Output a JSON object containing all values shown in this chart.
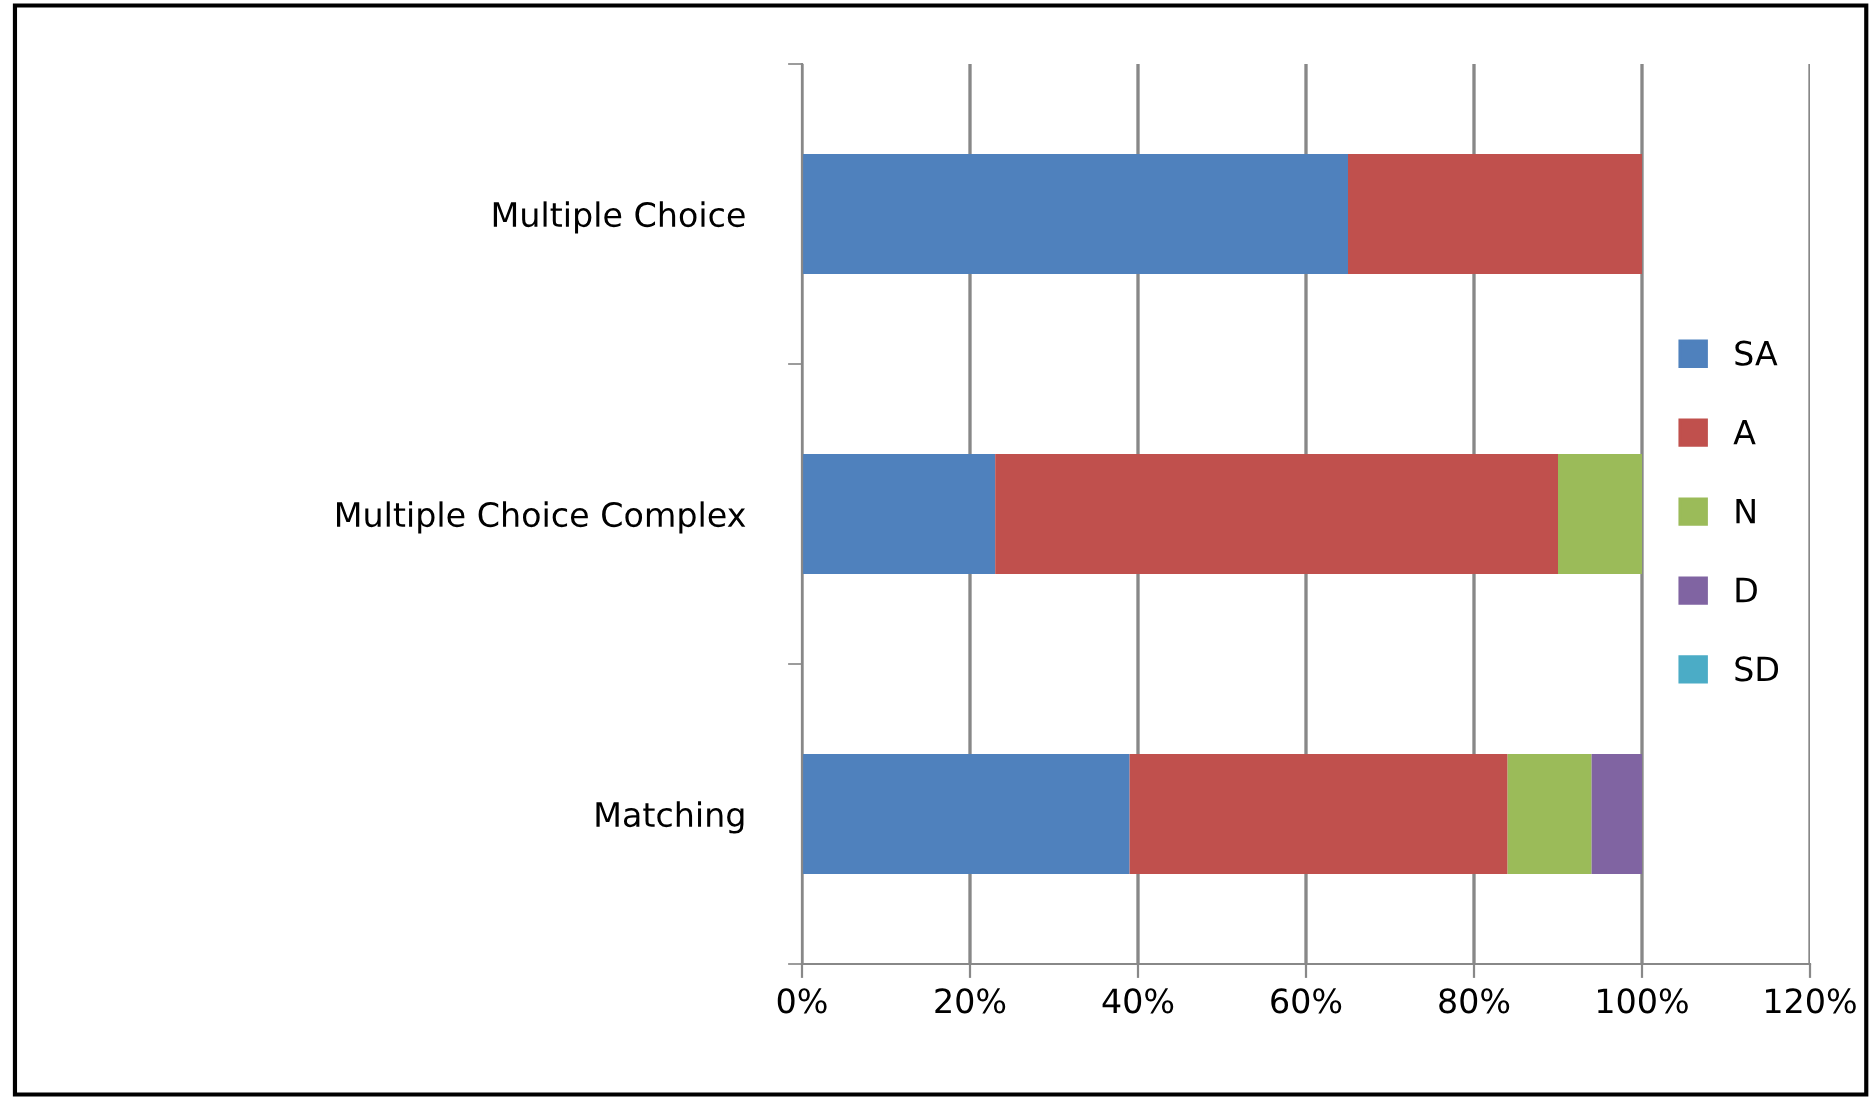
{
  "chart_data": {
    "type": "bar",
    "orientation": "horizontal",
    "stacked": true,
    "categories": [
      "Multiple Choice",
      "Multiple Choice Complex",
      "Matching"
    ],
    "series": [
      {
        "name": "SA",
        "color": "#4f81bd",
        "values": [
          65,
          23,
          39
        ]
      },
      {
        "name": "A",
        "color": "#c0504d",
        "values": [
          35,
          67,
          45
        ]
      },
      {
        "name": "N",
        "color": "#9bbb59",
        "values": [
          null,
          10,
          10
        ]
      },
      {
        "name": "D",
        "color": "#8064a2",
        "values": [
          null,
          null,
          6
        ]
      },
      {
        "name": "SD",
        "color": "#4bacc6",
        "values": [
          null,
          null,
          null
        ]
      }
    ],
    "xlim": [
      0,
      120
    ],
    "xticks": [
      {
        "value": 0,
        "label": "0%"
      },
      {
        "value": 20,
        "label": "20%"
      },
      {
        "value": 40,
        "label": "40%"
      },
      {
        "value": 60,
        "label": "60%"
      },
      {
        "value": 80,
        "label": "80%"
      },
      {
        "value": 100,
        "label": "100%"
      },
      {
        "value": 120,
        "label": "120%"
      }
    ],
    "grid": "x",
    "legend": "right"
  }
}
